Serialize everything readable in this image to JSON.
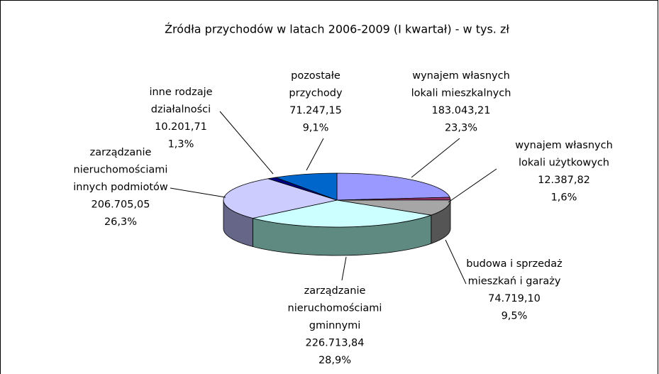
{
  "chart_data": {
    "type": "pie3d",
    "title": "Źródła przychodów w latach 2006-2009 (I kwartał) - w tys. zł",
    "categories": [
      [
        "wynajem własnych",
        "lokali mieszkalnych"
      ],
      [
        "wynajem własnych",
        "lokali użytkowych"
      ],
      [
        "budowa i sprzedaż",
        "mieszkań i garaży"
      ],
      [
        "zarządzanie",
        "nieruchomościami",
        "gminnymi"
      ],
      [
        "zarządzanie",
        "nieruchomościami",
        "innych podmiotów"
      ],
      [
        "inne rodzaje",
        "działalności"
      ],
      [
        "pozostałe",
        "przychody"
      ]
    ],
    "values": [
      183043.21,
      12387.82,
      74719.1,
      226713.84,
      206705.05,
      10201.71,
      71247.15
    ],
    "value_labels": [
      "183.043,21",
      "12.387,82",
      "74.719,10",
      "226.713,84",
      "206.705,05",
      "10.201,71",
      "71.247,15"
    ],
    "percents": [
      23.3,
      1.6,
      9.5,
      28.9,
      26.3,
      1.3,
      9.1
    ],
    "percent_labels": [
      "23,3%",
      "1,6%",
      "9,5%",
      "28,9%",
      "26,3%",
      "1,3%",
      "9,1%"
    ],
    "colors": [
      "#9999ff",
      "#993366",
      "#a6a6a6",
      "#ccffff",
      "#ccccff",
      "#000080",
      "#0066cc"
    ],
    "side_colors": [
      "#5a5a99",
      "#5c1f3d",
      "#555555",
      "#5f8a82",
      "#666688",
      "#000040",
      "#003d7a"
    ]
  }
}
